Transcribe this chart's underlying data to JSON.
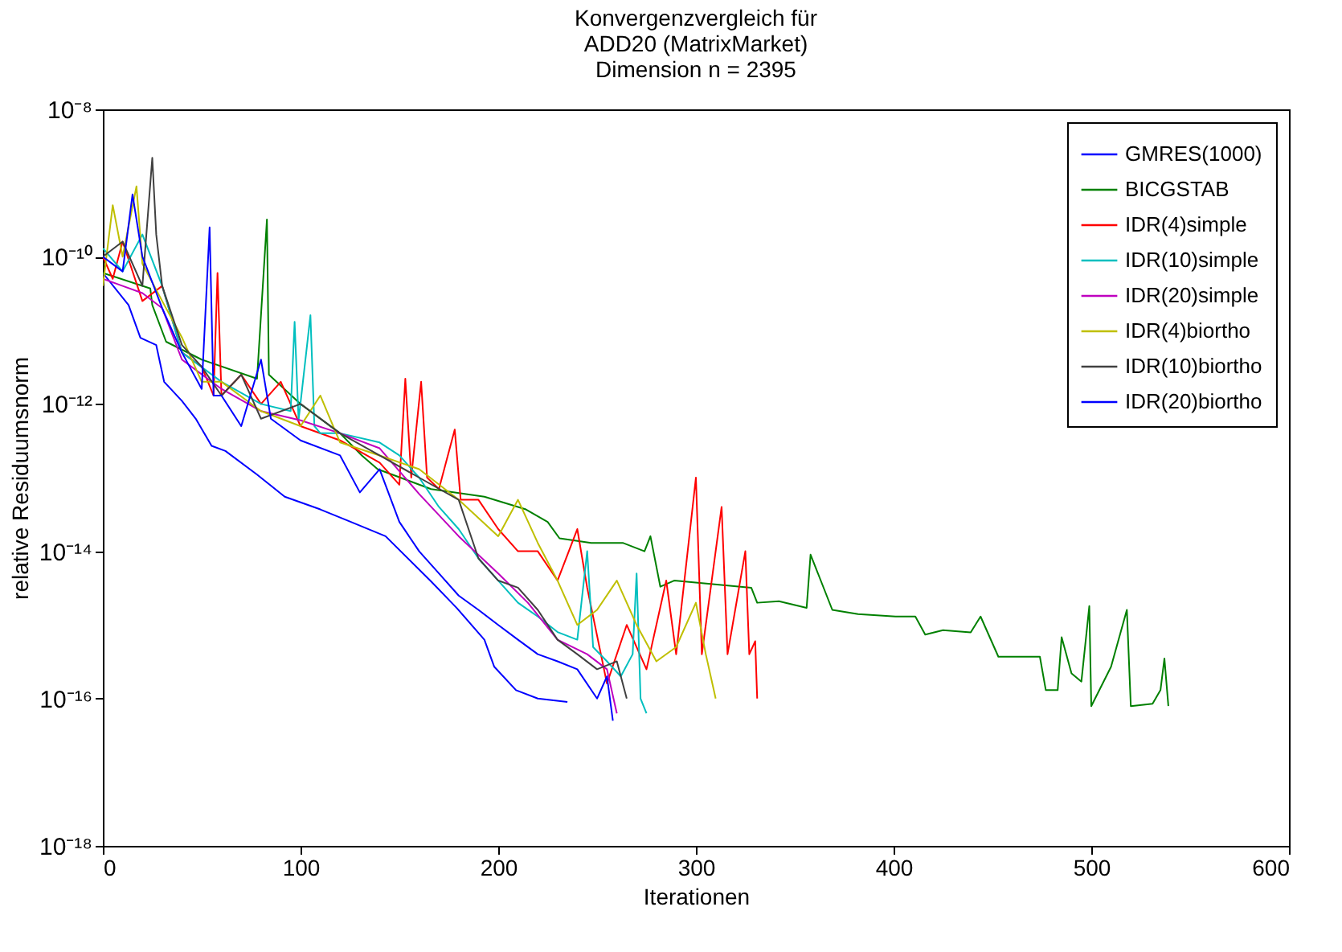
{
  "chart_data": {
    "type": "line",
    "title": "Konvergenzvergleich für\nADD20 (MatrixMarket)\nDimension n = 2395",
    "xlabel": "Iterationen",
    "ylabel": "relative Residuumsnorm",
    "log": "y",
    "grid": false,
    "legend": "top right",
    "line_style": "solid",
    "marker": "none",
    "xlim": [
      0,
      600
    ],
    "xticks": [
      0,
      100,
      200,
      300,
      400,
      500,
      600
    ],
    "ylim": [
      1e-18,
      1e-08
    ],
    "yticks": [
      {
        "value": 1e-18,
        "label": "10⁻¹⁸"
      },
      {
        "value": 1e-16,
        "label": "10⁻¹⁶"
      },
      {
        "value": 1e-14,
        "label": "10⁻¹⁴"
      },
      {
        "value": 1e-12,
        "label": "10⁻¹²"
      },
      {
        "value": 1e-10,
        "label": "10⁻¹⁰"
      },
      {
        "value": 1e-08,
        "label": "10⁻⁸"
      }
    ],
    "series": [
      {
        "name": "GMRES(1000)",
        "color": "#0000ff",
        "x": [
          0,
          13,
          19,
          27,
          31,
          40,
          47,
          55,
          62,
          78,
          92,
          110,
          124,
          143,
          166,
          179,
          193,
          198,
          209,
          220,
          235
        ],
        "values": [
          6e-11,
          2.2e-11,
          7.9e-12,
          6.3e-12,
          2e-12,
          1.1e-12,
          6.3e-13,
          2.7e-13,
          2.3e-13,
          1.1e-13,
          5.5e-14,
          3.7e-14,
          2.6e-14,
          1.6e-14,
          3.9e-15,
          1.7e-15,
          6.3e-16,
          2.7e-16,
          1.3e-16,
          1e-16,
          9e-17
        ]
      },
      {
        "name": "BICGSTAB",
        "color": "#008000",
        "x": [
          0,
          24,
          25,
          32,
          50,
          78,
          83,
          84,
          100,
          120,
          131,
          139,
          166,
          193,
          214,
          225,
          231,
          247,
          263,
          274,
          277,
          282,
          289,
          328,
          331,
          342,
          356,
          358,
          369,
          382,
          401,
          411,
          416,
          425,
          439,
          444,
          453,
          474,
          477,
          483,
          485,
          490,
          495,
          499,
          500,
          510,
          518,
          520,
          531,
          535,
          537,
          539
        ],
        "values": [
          6e-11,
          3.7e-11,
          2.2e-11,
          7e-12,
          4e-12,
          2.2e-12,
          3.2e-10,
          2.5e-12,
          1e-12,
          4e-13,
          2e-13,
          1.3e-13,
          7e-14,
          5.5e-14,
          3.7e-14,
          2.5e-14,
          1.5e-14,
          1.3e-14,
          1.3e-14,
          1e-14,
          1.6e-14,
          3.3e-15,
          4e-15,
          3.2e-15,
          2e-15,
          2.1e-15,
          1.7e-15,
          9e-15,
          1.6e-15,
          1.4e-15,
          1.3e-15,
          1.3e-15,
          7.4e-16,
          8.5e-16,
          7.9e-16,
          1.3e-15,
          3.7e-16,
          3.7e-16,
          1.3e-16,
          1.3e-16,
          6.8e-16,
          2.2e-16,
          1.7e-16,
          1.8e-15,
          7.9e-17,
          2.7e-16,
          1.6e-15,
          7.9e-17,
          8.5e-17,
          1.3e-16,
          3.5e-16,
          7.9e-17
        ]
      },
      {
        "name": "IDR(4)simple",
        "color": "#ff0000",
        "x": [
          0,
          5,
          10,
          20,
          30,
          40,
          50,
          56,
          58,
          60,
          70,
          80,
          90,
          100,
          120,
          140,
          150,
          153,
          156,
          161,
          164,
          170,
          178,
          181,
          190,
          200,
          210,
          220,
          230,
          240,
          245,
          255,
          265,
          275,
          285,
          290,
          300,
          303,
          313,
          316,
          325,
          327,
          330,
          331
        ],
        "values": [
          1e-10,
          5e-11,
          1.6e-10,
          2.5e-11,
          4e-11,
          5e-12,
          3.2e-12,
          1.3e-12,
          6e-11,
          1.3e-12,
          2.5e-12,
          1e-12,
          2e-12,
          5e-13,
          3.2e-13,
          1.6e-13,
          8e-14,
          2.2e-12,
          1e-13,
          2e-12,
          1e-13,
          7e-14,
          4.5e-13,
          5e-14,
          5e-14,
          2e-14,
          1e-14,
          1e-14,
          4e-15,
          2e-14,
          3.2e-15,
          1.6e-16,
          1e-15,
          2.5e-16,
          4e-15,
          4e-16,
          1e-13,
          4e-16,
          4e-14,
          4e-16,
          1e-14,
          4e-16,
          6e-16,
          1e-16
        ]
      },
      {
        "name": "IDR(10)simple",
        "color": "#00bfbf",
        "x": [
          0,
          10,
          20,
          30,
          40,
          60,
          80,
          95,
          97,
          99,
          105,
          107,
          110,
          120,
          140,
          150,
          160,
          170,
          180,
          190,
          200,
          210,
          220,
          230,
          240,
          245,
          248,
          255,
          262,
          268,
          270,
          272,
          275
        ],
        "values": [
          1.3e-10,
          6.3e-11,
          2e-10,
          4e-11,
          5e-12,
          2e-12,
          1e-12,
          8e-13,
          1.3e-11,
          6e-13,
          1.6e-11,
          5e-13,
          4e-13,
          4e-13,
          3e-13,
          2e-13,
          1e-13,
          4e-14,
          2e-14,
          8e-15,
          4e-15,
          2e-15,
          1.3e-15,
          8e-16,
          6.3e-16,
          1e-14,
          5e-16,
          3.2e-16,
          2e-16,
          4e-16,
          5e-15,
          1e-16,
          6.3e-17
        ]
      },
      {
        "name": "IDR(20)simple",
        "color": "#bf00bf",
        "x": [
          0,
          10,
          20,
          30,
          40,
          60,
          80,
          100,
          120,
          140,
          160,
          180,
          200,
          215,
          230,
          245,
          255,
          260
        ],
        "values": [
          5e-11,
          4e-11,
          3.2e-11,
          2e-11,
          4e-12,
          1.6e-12,
          8e-13,
          6e-13,
          4e-13,
          2.5e-13,
          6e-14,
          1.6e-14,
          5e-15,
          2e-15,
          6.3e-16,
          4e-16,
          2.5e-16,
          6.3e-17
        ]
      },
      {
        "name": "IDR(4)biortho",
        "color": "#bfbf00",
        "x": [
          0,
          5,
          10,
          17,
          20,
          30,
          40,
          50,
          60,
          80,
          100,
          110,
          120,
          140,
          160,
          180,
          200,
          210,
          220,
          230,
          240,
          250,
          260,
          270,
          280,
          290,
          300,
          305,
          310
        ],
        "values": [
          4e-11,
          5e-10,
          1e-10,
          9e-10,
          8e-11,
          2.5e-11,
          8e-12,
          2e-12,
          2e-12,
          8e-13,
          5e-13,
          1.3e-12,
          3e-13,
          2e-13,
          1.3e-13,
          5e-14,
          1.6e-14,
          5e-14,
          1.3e-14,
          4e-15,
          1e-15,
          1.6e-15,
          4e-15,
          1e-15,
          3.2e-16,
          5e-16,
          2e-15,
          4e-16,
          1e-16
        ]
      },
      {
        "name": "IDR(10)biortho",
        "color": "#404040",
        "x": [
          0,
          10,
          20,
          25,
          27,
          30,
          40,
          50,
          60,
          70,
          80,
          100,
          120,
          140,
          160,
          180,
          190,
          200,
          210,
          220,
          230,
          240,
          250,
          260,
          265
        ],
        "values": [
          1e-10,
          1.6e-10,
          4e-11,
          2.2e-09,
          2e-10,
          4e-11,
          6.3e-12,
          3.2e-12,
          1.3e-12,
          2.5e-12,
          6.3e-13,
          1e-12,
          4e-13,
          2e-13,
          1e-13,
          5e-14,
          8e-15,
          4e-15,
          3.2e-15,
          1.6e-15,
          6.3e-16,
          4e-16,
          2.5e-16,
          3.2e-16,
          1e-16
        ]
      },
      {
        "name": "IDR(20)biortho",
        "color": "#0000ff",
        "x": [
          0,
          10,
          15,
          20,
          30,
          40,
          50,
          54,
          56,
          60,
          70,
          80,
          85,
          100,
          120,
          130,
          140,
          150,
          160,
          170,
          180,
          190,
          200,
          210,
          220,
          230,
          240,
          250,
          255,
          258
        ],
        "values": [
          1e-10,
          6.3e-11,
          7e-10,
          1e-10,
          2e-11,
          5e-12,
          1.6e-12,
          2.5e-10,
          1.3e-12,
          1.3e-12,
          5e-13,
          4e-12,
          6.3e-13,
          3.2e-13,
          2e-13,
          6.3e-14,
          1.3e-13,
          2.5e-14,
          1e-14,
          5e-15,
          2.5e-15,
          1.6e-15,
          1e-15,
          6.3e-16,
          4e-16,
          3.2e-16,
          2.5e-16,
          1e-16,
          2e-16,
          5e-17
        ]
      }
    ]
  }
}
